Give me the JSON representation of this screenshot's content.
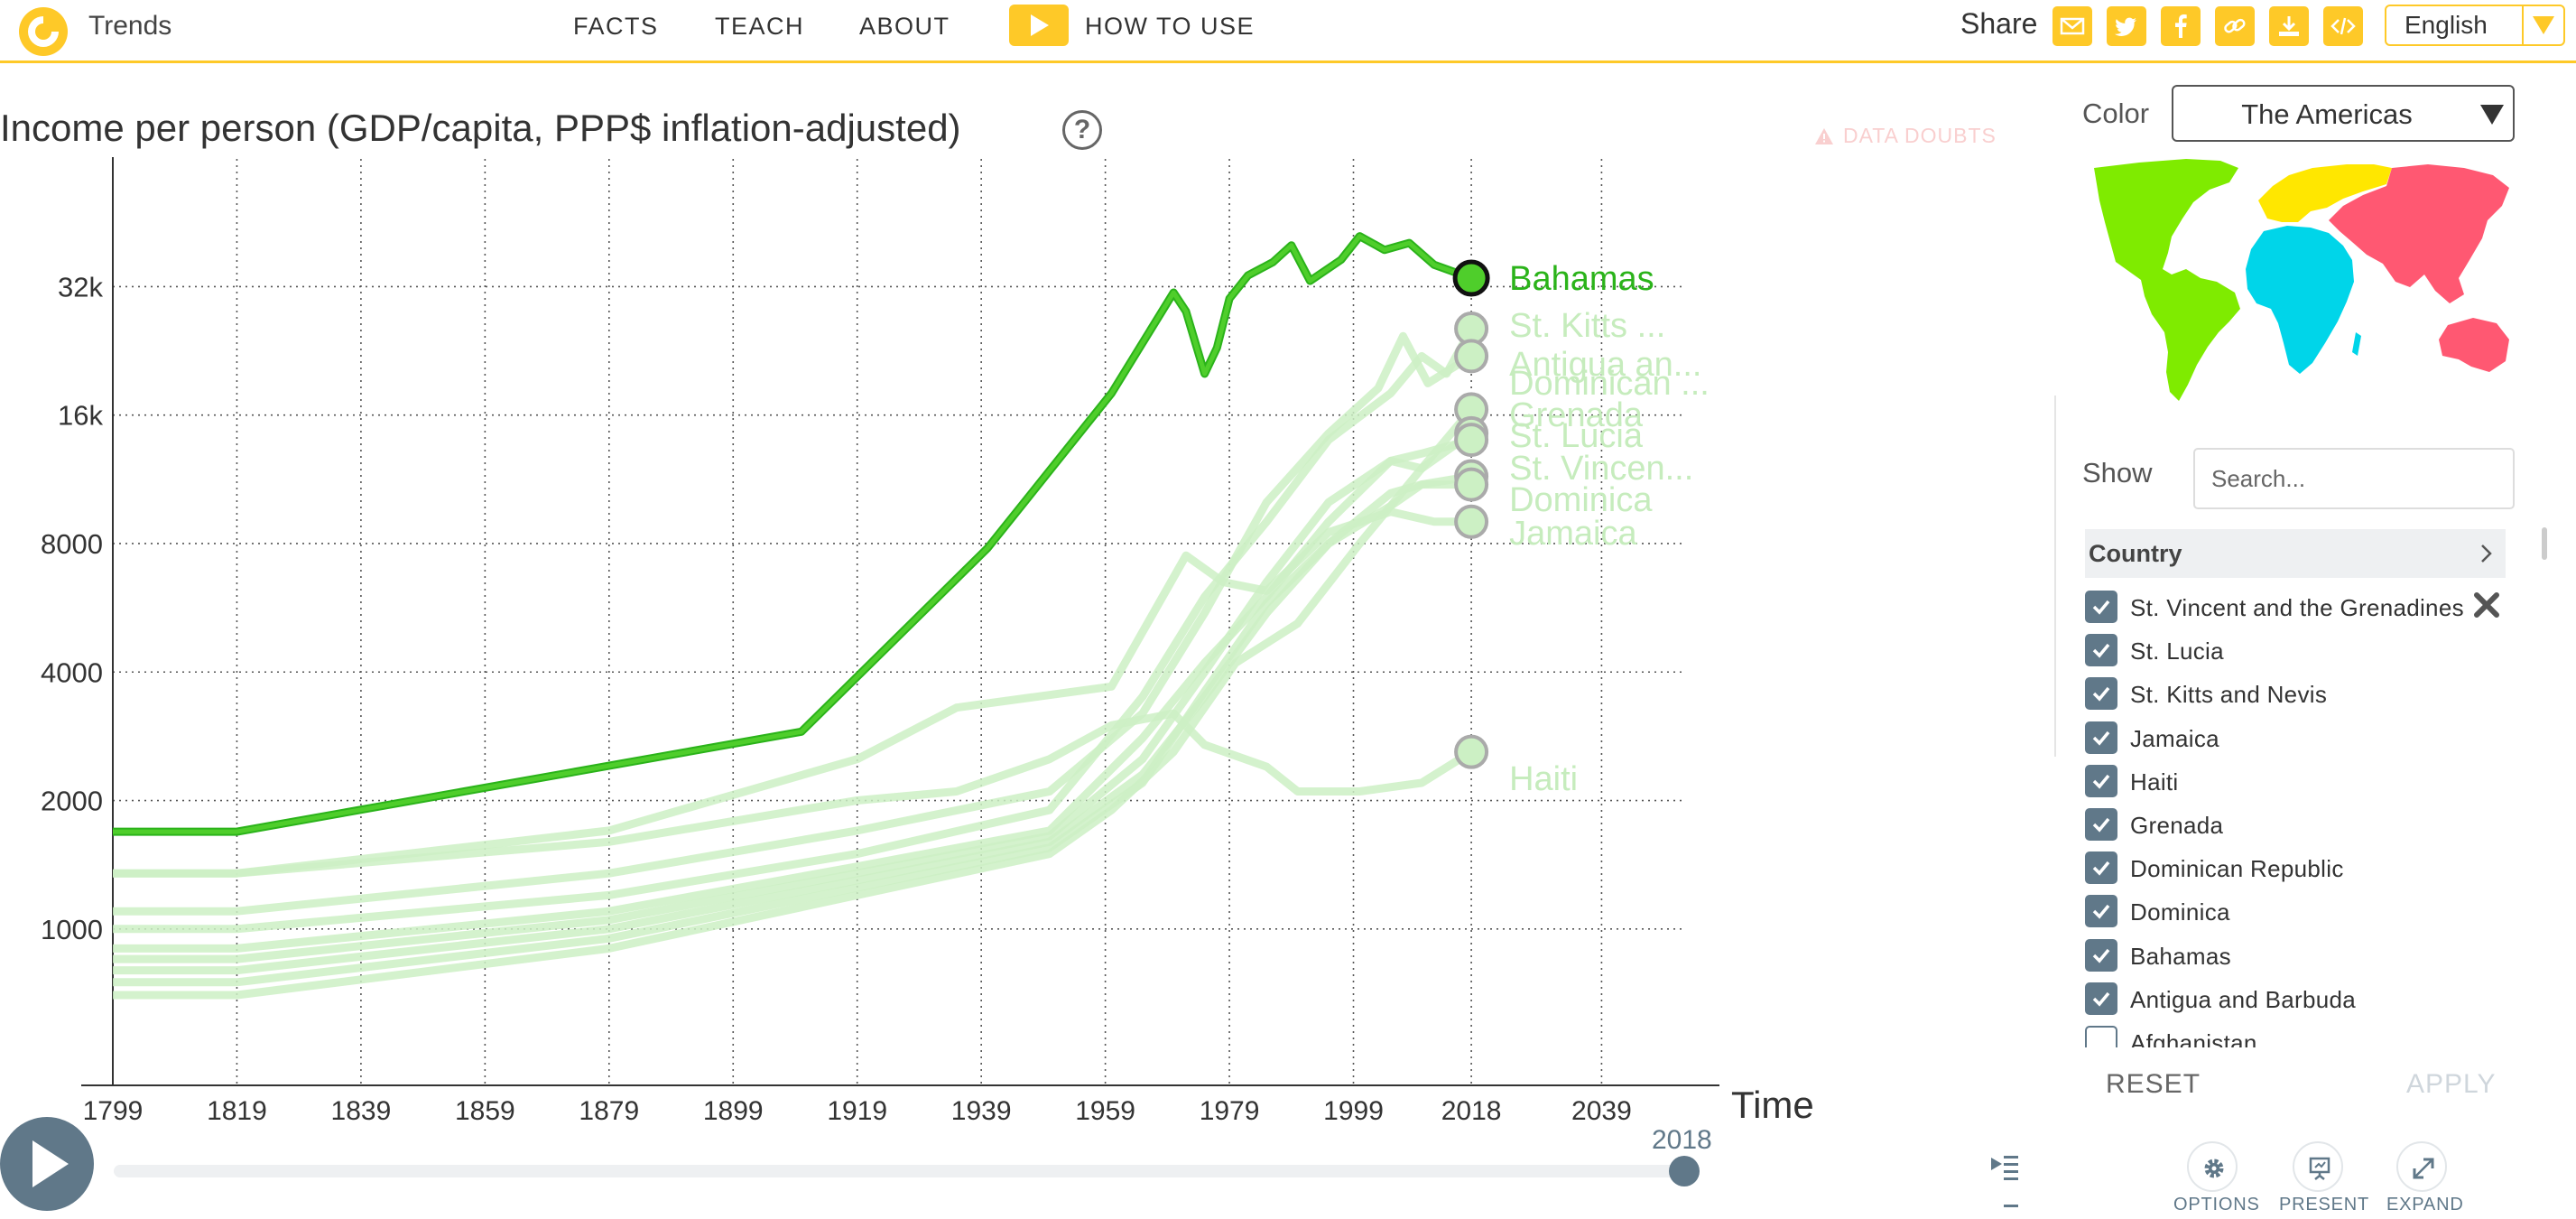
{
  "header": {
    "brand": "Trends",
    "nav": [
      {
        "id": "facts",
        "label": "FACTS"
      },
      {
        "id": "teach",
        "label": "TEACH"
      },
      {
        "id": "about",
        "label": "ABOUT"
      }
    ],
    "how_to_use": "HOW TO USE",
    "share_label": "Share",
    "share_icons": [
      "mail-icon",
      "twitter-icon",
      "facebook-icon",
      "link-icon",
      "download-icon",
      "embed-icon"
    ],
    "language": "English"
  },
  "chart": {
    "title": "Income per person (GDP/capita, PPP$ inflation-adjusted)",
    "data_doubts": "DATA DOUBTS",
    "time_label": "Time"
  },
  "chart_data": {
    "type": "line",
    "title": "Income per person (GDP/capita, PPP$ inflation-adjusted)",
    "xlabel": "Time",
    "ylabel": "Income per person (GDP/capita, PPP$ inflation-adjusted)",
    "y_scale": "log",
    "xlim": [
      1799,
      2058
    ],
    "ylim": [
      700,
      65000
    ],
    "x_ticks": [
      1799,
      1819,
      1839,
      1859,
      1879,
      1899,
      1919,
      1939,
      1959,
      1979,
      1999,
      2018,
      2039
    ],
    "x_tick_labels": [
      "1799",
      "1819",
      "1839",
      "1859",
      "1879",
      "1899",
      "1919",
      "1939",
      "1959",
      "1979",
      "1999",
      "2018",
      "2039"
    ],
    "y_ticks": [
      1000,
      2000,
      4000,
      8000,
      16000,
      32000
    ],
    "y_tick_labels": [
      "1000",
      "2000",
      "4000",
      "8000",
      "16k",
      "32k"
    ],
    "grid": true,
    "highlight_color": "#4fce2b",
    "faded_color": "#ccf0c4",
    "series": [
      {
        "name": "Bahamas",
        "highlighted": true,
        "label": "Bahamas",
        "points": [
          [
            1799,
            1690
          ],
          [
            1819,
            1690
          ],
          [
            1910,
            2900
          ],
          [
            1940,
            7800
          ],
          [
            1960,
            18000
          ],
          [
            1970,
            31000
          ],
          [
            1972,
            28000
          ],
          [
            1975,
            20000
          ],
          [
            1977,
            23000
          ],
          [
            1979,
            30000
          ],
          [
            1982,
            34000
          ],
          [
            1986,
            36500
          ],
          [
            1989,
            40000
          ],
          [
            1992,
            33000
          ],
          [
            1997,
            37000
          ],
          [
            2000,
            42000
          ],
          [
            2004,
            39000
          ],
          [
            2008,
            40500
          ],
          [
            2012,
            36000
          ],
          [
            2018,
            33500
          ]
        ]
      },
      {
        "name": "St. Kitts and Nevis",
        "highlighted": false,
        "label": "St. Kitts ...",
        "points": [
          [
            1799,
            1000
          ],
          [
            1819,
            1000
          ],
          [
            1879,
            1200
          ],
          [
            1919,
            1500
          ],
          [
            1950,
            1900
          ],
          [
            1965,
            3500
          ],
          [
            1975,
            6000
          ],
          [
            1985,
            9000
          ],
          [
            1995,
            14000
          ],
          [
            2005,
            18000
          ],
          [
            2010,
            22000
          ],
          [
            2014,
            20000
          ],
          [
            2018,
            25500
          ]
        ]
      },
      {
        "name": "Antigua and Barbuda",
        "highlighted": false,
        "label": "Antigua an...",
        "points": [
          [
            1799,
            1100
          ],
          [
            1819,
            1100
          ],
          [
            1879,
            1350
          ],
          [
            1919,
            1700
          ],
          [
            1950,
            2100
          ],
          [
            1965,
            3200
          ],
          [
            1975,
            5500
          ],
          [
            1985,
            10000
          ],
          [
            1995,
            14500
          ],
          [
            2003,
            18500
          ],
          [
            2007,
            24500
          ],
          [
            2011,
            19000
          ],
          [
            2018,
            22000
          ]
        ]
      },
      {
        "name": "Dominican Republic",
        "highlighted": false,
        "label": "Dominican ...",
        "points": [
          [
            1799,
            700
          ],
          [
            1819,
            700
          ],
          [
            1879,
            900
          ],
          [
            1919,
            1200
          ],
          [
            1950,
            1500
          ],
          [
            1960,
            1900
          ],
          [
            1970,
            2600
          ],
          [
            1980,
            4200
          ],
          [
            1990,
            5200
          ],
          [
            2000,
            8000
          ],
          [
            2010,
            12000
          ],
          [
            2018,
            16500
          ]
        ]
      },
      {
        "name": "Grenada",
        "highlighted": false,
        "label": "Grenada",
        "points": [
          [
            1799,
            900
          ],
          [
            1819,
            900
          ],
          [
            1879,
            1100
          ],
          [
            1919,
            1400
          ],
          [
            1950,
            1700
          ],
          [
            1965,
            2800
          ],
          [
            1975,
            4200
          ],
          [
            1985,
            6000
          ],
          [
            1995,
            9000
          ],
          [
            2005,
            12500
          ],
          [
            2010,
            12000
          ],
          [
            2018,
            14500
          ]
        ]
      },
      {
        "name": "St. Lucia",
        "highlighted": false,
        "label": "St. Lucia",
        "points": [
          [
            1799,
            850
          ],
          [
            1819,
            850
          ],
          [
            1879,
            1050
          ],
          [
            1919,
            1350
          ],
          [
            1950,
            1650
          ],
          [
            1965,
            2500
          ],
          [
            1975,
            4000
          ],
          [
            1985,
            6500
          ],
          [
            1995,
            10000
          ],
          [
            2005,
            12500
          ],
          [
            2010,
            13000
          ],
          [
            2018,
            14000
          ]
        ]
      },
      {
        "name": "St. Vincent and the Grenadines",
        "highlighted": false,
        "label": "St. Vincen...",
        "points": [
          [
            1799,
            800
          ],
          [
            1819,
            800
          ],
          [
            1879,
            1000
          ],
          [
            1919,
            1300
          ],
          [
            1950,
            1600
          ],
          [
            1965,
            2300
          ],
          [
            1975,
            3500
          ],
          [
            1985,
            5500
          ],
          [
            1995,
            8000
          ],
          [
            2005,
            10500
          ],
          [
            2010,
            11000
          ],
          [
            2018,
            11500
          ]
        ]
      },
      {
        "name": "Dominica",
        "highlighted": false,
        "label": "Dominica",
        "points": [
          [
            1799,
            750
          ],
          [
            1819,
            750
          ],
          [
            1879,
            950
          ],
          [
            1919,
            1250
          ],
          [
            1950,
            1550
          ],
          [
            1965,
            2200
          ],
          [
            1975,
            3600
          ],
          [
            1985,
            5800
          ],
          [
            1995,
            8000
          ],
          [
            2005,
            9800
          ],
          [
            2010,
            11000
          ],
          [
            2018,
            11000
          ]
        ]
      },
      {
        "name": "Jamaica",
        "highlighted": false,
        "label": "Jamaica",
        "points": [
          [
            1799,
            1350
          ],
          [
            1819,
            1350
          ],
          [
            1879,
            1700
          ],
          [
            1919,
            2500
          ],
          [
            1935,
            3300
          ],
          [
            1960,
            3700
          ],
          [
            1972,
            7500
          ],
          [
            1978,
            6500
          ],
          [
            1985,
            6200
          ],
          [
            1995,
            8500
          ],
          [
            2005,
            9500
          ],
          [
            2012,
            9000
          ],
          [
            2018,
            9000
          ]
        ]
      },
      {
        "name": "Haiti",
        "highlighted": false,
        "label": "Haiti",
        "points": [
          [
            1799,
            1350
          ],
          [
            1819,
            1350
          ],
          [
            1879,
            1600
          ],
          [
            1919,
            2000
          ],
          [
            1935,
            2100
          ],
          [
            1950,
            2500
          ],
          [
            1960,
            3000
          ],
          [
            1970,
            3200
          ],
          [
            1975,
            2700
          ],
          [
            1985,
            2400
          ],
          [
            1990,
            2100
          ],
          [
            2000,
            2100
          ],
          [
            2010,
            2200
          ],
          [
            2018,
            2600
          ]
        ]
      }
    ]
  },
  "timeslider": {
    "value": "2018",
    "value_year": 2018,
    "start_year": 1799
  },
  "panel": {
    "color_label": "Color",
    "color_value": "The Americas",
    "map_colors": {
      "americas": "#7feb00",
      "europe": "#ffe700",
      "asia": "#ff5872",
      "africa": "#00d5e9"
    },
    "show_label": "Show",
    "search_placeholder": "Search...",
    "country_header": "Country",
    "countries": [
      {
        "name": "St. Vincent and the Grenadines",
        "checked": true
      },
      {
        "name": "St. Lucia",
        "checked": true
      },
      {
        "name": "St. Kitts and Nevis",
        "checked": true
      },
      {
        "name": "Jamaica",
        "checked": true
      },
      {
        "name": "Haiti",
        "checked": true
      },
      {
        "name": "Grenada",
        "checked": true
      },
      {
        "name": "Dominican Republic",
        "checked": true
      },
      {
        "name": "Dominica",
        "checked": true
      },
      {
        "name": "Bahamas",
        "checked": true
      },
      {
        "name": "Antigua and Barbuda",
        "checked": true
      },
      {
        "name": "Afghanistan",
        "checked": false
      }
    ],
    "reset_label": "RESET",
    "apply_label": "APPLY"
  },
  "toolbar": {
    "options_label": "OPTIONS",
    "present_label": "PRESENT",
    "expand_label": "EXPAND"
  }
}
